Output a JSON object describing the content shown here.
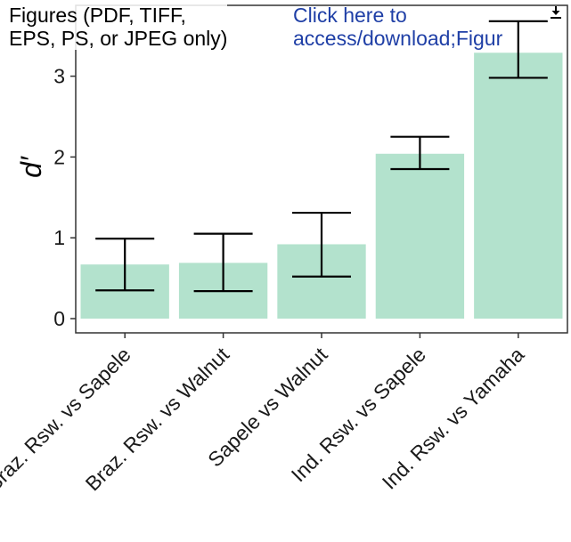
{
  "header": {
    "left_line1": "Figures (PDF, TIFF,",
    "left_line2": "EPS, PS, or JPEG only)",
    "link_line1": "Click here to",
    "link_line2": "access/download;Figur",
    "download_icon": "download-icon"
  },
  "chart_data": {
    "type": "bar",
    "ylabel": "d′",
    "xlabel": "",
    "ylim": [
      -0.1,
      3.6
    ],
    "yticks": [
      0,
      1,
      2,
      3
    ],
    "grid": false,
    "categories": [
      "Braz. Rsw. vs Sapele",
      "Braz. Rsw. vs Walnut",
      "Sapele vs Walnut",
      "Ind. Rsw. vs Sapele",
      "Ind. Rsw. vs Yamaha"
    ],
    "values": [
      0.67,
      0.69,
      0.92,
      2.04,
      3.29
    ],
    "error_low": [
      0.35,
      0.34,
      0.52,
      1.85,
      2.98
    ],
    "error_high": [
      0.99,
      1.05,
      1.31,
      2.25,
      3.68
    ],
    "bar_color": "#b3e2cd",
    "errorbar_color": "#000000"
  }
}
